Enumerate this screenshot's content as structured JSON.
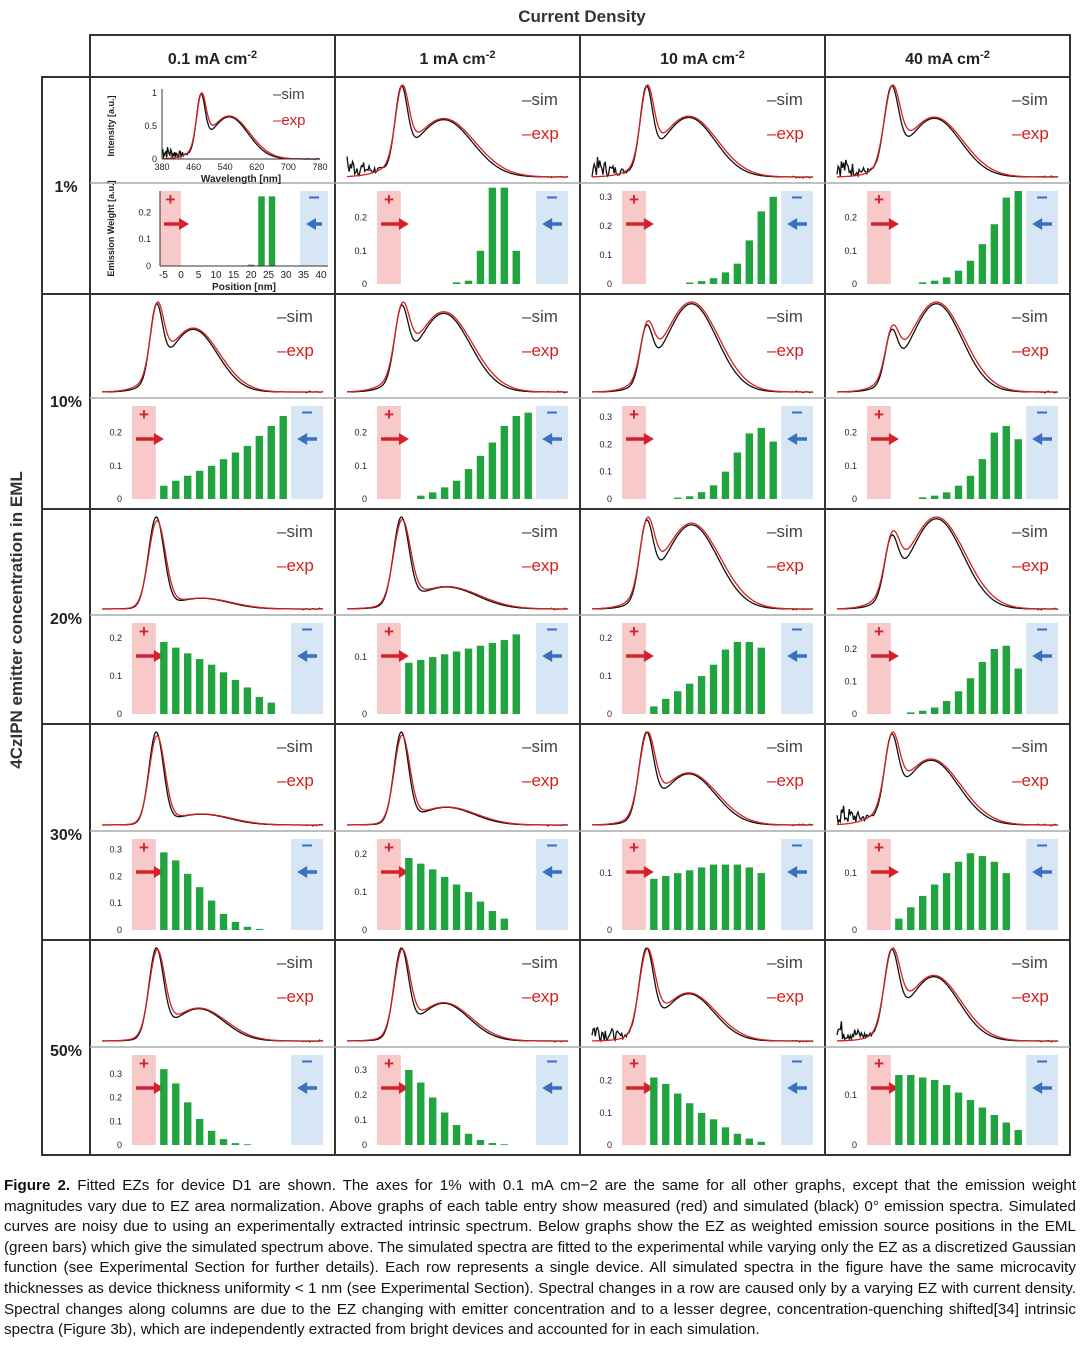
{
  "header": {
    "title": "Current Density"
  },
  "yaxis_title": "4CzIPN emitter concentration in EML",
  "columns": [
    {
      "value": "0.1 mA cm",
      "exp": "-2"
    },
    {
      "value": "1 mA cm",
      "exp": "-2"
    },
    {
      "value": "10 mA cm",
      "exp": "-2"
    },
    {
      "value": "40 mA cm",
      "exp": "-2"
    }
  ],
  "rows": [
    "1%",
    "10%",
    "20%",
    "30%",
    "50%"
  ],
  "legend": {
    "sim": "–sim",
    "exp": "–exp"
  },
  "charge_labels": {
    "plus": "+",
    "minus": "–"
  },
  "axes_labels": {
    "spectrum_ylabel": "Intensity [a.u.]",
    "spectrum_xlabel": "Wavelength [nm]",
    "spectrum_xticks": [
      "380",
      "460",
      "540",
      "620",
      "700",
      "780"
    ],
    "spectrum_yticks": [
      "0",
      "0.5",
      "1"
    ],
    "ez_ylabel": "Emission Weight [a.u.]",
    "ez_xlabel": "Position [nm]",
    "ez_xticks": [
      "-5",
      "0",
      "5",
      "10",
      "15",
      "20",
      "25",
      "30",
      "35",
      "40"
    ]
  },
  "chart_data": {
    "type": "figure-grid",
    "spectra": {
      "type": "line",
      "x_range_nm": [
        380,
        780
      ],
      "series": [
        "sim (black)",
        "exp (red)"
      ],
      "peaks_nm": [
        [
          [
            478,
            0.95,
            11
          ],
          [
            550,
            0.78,
            48
          ]
        ],
        [
          [
            478,
            1.0,
            11
          ],
          [
            555,
            0.8,
            52
          ]
        ],
        [
          [
            478,
            0.9,
            11
          ],
          [
            555,
            0.72,
            48
          ]
        ],
        [
          [
            478,
            1.0,
            13
          ],
          [
            556,
            0.78,
            48
          ]
        ],
        [
          [
            478,
            0.85,
            11
          ],
          [
            545,
            0.78,
            44
          ]
        ],
        [
          [
            478,
            0.78,
            12
          ],
          [
            555,
            0.95,
            48
          ]
        ],
        [
          [
            478,
            0.55,
            11
          ],
          [
            560,
            1.0,
            46
          ]
        ],
        [
          [
            478,
            0.5,
            11
          ],
          [
            560,
            1.0,
            46
          ]
        ],
        [
          [
            478,
            1.0,
            14
          ],
          [
            560,
            0.12,
            50
          ]
        ],
        [
          [
            478,
            1.0,
            14
          ],
          [
            560,
            0.26,
            55
          ]
        ],
        [
          [
            478,
            0.82,
            12
          ],
          [
            560,
            1.0,
            48
          ]
        ],
        [
          [
            478,
            0.58,
            12
          ],
          [
            560,
            1.0,
            48
          ]
        ],
        [
          [
            478,
            1.0,
            13
          ],
          [
            560,
            0.12,
            50
          ]
        ],
        [
          [
            478,
            1.0,
            13
          ],
          [
            560,
            0.2,
            50
          ]
        ],
        [
          [
            478,
            1.0,
            13
          ],
          [
            555,
            0.65,
            48
          ]
        ],
        [
          [
            478,
            0.92,
            12
          ],
          [
            550,
            0.88,
            50
          ]
        ],
        [
          [
            478,
            1.0,
            13
          ],
          [
            555,
            0.38,
            46
          ]
        ],
        [
          [
            478,
            1.0,
            13
          ],
          [
            555,
            0.45,
            46
          ]
        ],
        [
          [
            478,
            1.0,
            13
          ],
          [
            555,
            0.58,
            46
          ]
        ],
        [
          [
            478,
            1.0,
            13
          ],
          [
            555,
            0.85,
            46
          ]
        ]
      ],
      "noisy_blue_region": [
        true,
        true,
        true,
        true,
        false,
        false,
        false,
        false,
        false,
        false,
        false,
        false,
        false,
        false,
        false,
        true,
        false,
        false,
        true,
        true
      ]
    },
    "emission_zones": {
      "type": "bar",
      "x_positions_nm": [
        -5,
        0,
        5,
        10,
        15,
        20,
        25,
        30,
        35,
        40
      ],
      "bar_positions_nm": [
        2,
        5,
        8,
        11,
        14,
        17,
        20,
        23,
        26,
        29,
        32
      ],
      "y_ticks": [
        [
          "0",
          "0.1",
          "0.2"
        ],
        [
          "0",
          "0.1",
          "0.2"
        ],
        [
          "0",
          "0.1",
          "0.2",
          "0.3"
        ],
        [
          "0",
          "0.1",
          "0.2"
        ],
        [
          "0",
          "0.1",
          "0.2"
        ],
        [
          "0",
          "0.1",
          "0.2"
        ],
        [
          "0",
          "0.1",
          "0.2",
          "0.3"
        ],
        [
          "0",
          "0.1",
          "0.2"
        ],
        [
          "0",
          "0.1",
          "0.2"
        ],
        [
          "0",
          "0.1"
        ],
        [
          "0",
          "0.1",
          "0.2"
        ],
        [
          "0",
          "0.1",
          "0.2"
        ],
        [
          "0",
          "0.1",
          "0.2",
          "0.3"
        ],
        [
          "0",
          "0.1",
          "0.2"
        ],
        [
          "0",
          "0.1"
        ],
        [
          "0",
          "0.1"
        ],
        [
          "0",
          "0.1",
          "0.2",
          "0.3"
        ],
        [
          "0",
          "0.1",
          "0.2",
          "0.3"
        ],
        [
          "0",
          "0.1",
          "0.2"
        ],
        [
          "0",
          "0.1"
        ]
      ],
      "y_max": [
        0.28,
        0.28,
        0.32,
        0.28,
        0.28,
        0.28,
        0.34,
        0.28,
        0.24,
        0.16,
        0.24,
        0.28,
        0.34,
        0.24,
        0.16,
        0.16,
        0.38,
        0.36,
        0.28,
        0.18
      ],
      "values": [
        [
          0,
          0,
          0,
          0,
          0,
          0,
          0.005,
          0.26,
          0.26,
          0,
          0
        ],
        [
          0,
          0,
          0,
          0,
          0.005,
          0.01,
          0.1,
          0.29,
          0.29,
          0.1,
          0
        ],
        [
          0,
          0,
          0,
          0.005,
          0.01,
          0.02,
          0.04,
          0.07,
          0.15,
          0.25,
          0.3
        ],
        [
          0,
          0,
          0.005,
          0.01,
          0.02,
          0.04,
          0.07,
          0.12,
          0.18,
          0.26,
          0.28
        ],
        [
          0.04,
          0.055,
          0.07,
          0.085,
          0.1,
          0.12,
          0.14,
          0.16,
          0.19,
          0.22,
          0.25
        ],
        [
          0,
          0.01,
          0.02,
          0.035,
          0.055,
          0.09,
          0.13,
          0.17,
          0.22,
          0.25,
          0.26
        ],
        [
          0,
          0,
          0.005,
          0.01,
          0.025,
          0.05,
          0.1,
          0.17,
          0.24,
          0.26,
          0.21
        ],
        [
          0,
          0,
          0.005,
          0.01,
          0.02,
          0.04,
          0.07,
          0.12,
          0.2,
          0.22,
          0.18
        ],
        [
          0.19,
          0.175,
          0.16,
          0.145,
          0.13,
          0.11,
          0.09,
          0.07,
          0.045,
          0.03,
          0
        ],
        [
          0.09,
          0.095,
          0.1,
          0.105,
          0.11,
          0.115,
          0.12,
          0.125,
          0.13,
          0.14,
          0
        ],
        [
          0.02,
          0.04,
          0.06,
          0.08,
          0.1,
          0.13,
          0.17,
          0.19,
          0.19,
          0.175,
          0
        ],
        [
          0,
          0.005,
          0.01,
          0.02,
          0.04,
          0.07,
          0.11,
          0.16,
          0.2,
          0.21,
          0.14
        ],
        [
          0.29,
          0.26,
          0.21,
          0.16,
          0.11,
          0.06,
          0.03,
          0.012,
          0.004,
          0,
          0
        ],
        [
          0.19,
          0.175,
          0.16,
          0.14,
          0.12,
          0.1,
          0.075,
          0.05,
          0.03,
          0,
          0
        ],
        [
          0.09,
          0.095,
          0.1,
          0.105,
          0.11,
          0.115,
          0.115,
          0.115,
          0.11,
          0.1,
          0
        ],
        [
          0.02,
          0.04,
          0.06,
          0.08,
          0.1,
          0.12,
          0.135,
          0.13,
          0.12,
          0.1,
          0
        ],
        [
          0.32,
          0.26,
          0.18,
          0.11,
          0.06,
          0.025,
          0.008,
          0.003,
          0,
          0,
          0
        ],
        [
          0.3,
          0.25,
          0.19,
          0.13,
          0.08,
          0.045,
          0.02,
          0.008,
          0.003,
          0,
          0
        ],
        [
          0.21,
          0.19,
          0.16,
          0.13,
          0.1,
          0.08,
          0.055,
          0.035,
          0.02,
          0.01,
          0
        ],
        [
          0.14,
          0.14,
          0.135,
          0.13,
          0.12,
          0.105,
          0.09,
          0.075,
          0.06,
          0.045,
          0.03
        ]
      ],
      "plus_color": "#f8c9c9",
      "minus_color": "#d6e6f5",
      "bar_color": "#21a33f",
      "plus_arrow_color": "#d3212d",
      "minus_arrow_color": "#3b6fc4"
    }
  },
  "caption": {
    "label": "Figure 2.",
    "text": " Fitted EZs for device D1 are shown. The axes for 1% with 0.1 mA cm−2 are the same for all other graphs, except that the emission weight magnitudes vary due to EZ area normalization. Above graphs of each table entry show measured (red) and simulated (black) 0° emission spectra. Simulated curves are noisy due to using an experimentally extracted intrinsic spectrum. Below graphs show the EZ as weighted emission source positions in the EML (green bars) which give the simulated spectrum above. The simulated spectra are fitted to the experimental while varying only the EZ as a discretized Gaussian function (see Experimental Section for further details). Each row represents a single device. All simulated spectra in the figure have the same microcavity thicknesses as device thickness uniformity < 1 nm (see Experimental Section). Spectral changes in a row are caused only by a varying EZ with current density. Spectral changes along columns are due to the EZ changing with emitter concentration and to a lesser degree, concentration-quenching shifted[34] intrinsic spectra (Figure 3b), which are independently extracted from bright devices and accounted for in each simulation."
  }
}
